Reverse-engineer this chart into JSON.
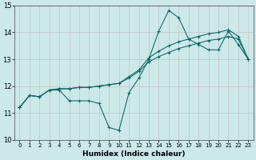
{
  "title": "",
  "xlabel": "Humidex (Indice chaleur)",
  "bg_color": "#cce8e8",
  "line_color": "#006868",
  "grid_color_v": "#c8b8b8",
  "grid_color_h": "#c8b8b8",
  "xlim": [
    -0.5,
    23.5
  ],
  "ylim": [
    10,
    15
  ],
  "yticks": [
    10,
    11,
    12,
    13,
    14,
    15
  ],
  "xticks": [
    0,
    1,
    2,
    3,
    4,
    5,
    6,
    7,
    8,
    9,
    10,
    11,
    12,
    13,
    14,
    15,
    16,
    17,
    18,
    19,
    20,
    21,
    22,
    23
  ],
  "lines": [
    [
      11.2,
      11.65,
      11.6,
      11.85,
      11.85,
      11.45,
      11.45,
      11.45,
      11.35,
      10.45,
      10.35,
      11.75,
      12.3,
      13.0,
      14.05,
      14.82,
      14.55,
      13.75,
      13.55,
      13.35,
      13.35,
      14.05,
      13.55,
      13.0
    ],
    [
      11.2,
      11.65,
      11.6,
      11.85,
      11.9,
      11.9,
      11.95,
      11.95,
      12.0,
      12.05,
      12.1,
      12.3,
      12.55,
      12.9,
      13.1,
      13.25,
      13.4,
      13.5,
      13.6,
      13.7,
      13.75,
      13.85,
      13.75,
      13.0
    ],
    [
      11.2,
      11.65,
      11.6,
      11.85,
      11.9,
      11.9,
      11.95,
      11.95,
      12.0,
      12.05,
      12.1,
      12.35,
      12.6,
      13.05,
      13.3,
      13.5,
      13.65,
      13.75,
      13.85,
      13.95,
      14.0,
      14.1,
      13.85,
      13.0
    ]
  ]
}
